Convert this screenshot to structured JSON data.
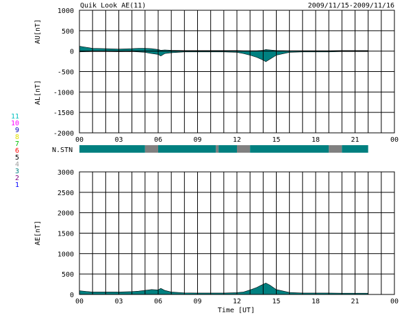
{
  "header": {
    "title": "Quik Look AE(11)",
    "date_range": "2009/11/15-2009/11/16"
  },
  "colors": {
    "data_fill": "#008080",
    "missing_fill": "#808080",
    "grid": "#000000"
  },
  "legend_numbers": [
    {
      "label": "11",
      "color": "#00c0c0"
    },
    {
      "label": "10",
      "color": "#ff00ff"
    },
    {
      "label": "9",
      "color": "#0000c0"
    },
    {
      "label": "8",
      "color": "#e0e000"
    },
    {
      "label": "7",
      "color": "#00c000"
    },
    {
      "label": "6",
      "color": "#ff0000"
    },
    {
      "label": "5",
      "color": "#000000"
    },
    {
      "label": "4",
      "color": "#a0a0a0"
    },
    {
      "label": "3",
      "color": "#008080"
    },
    {
      "label": "2",
      "color": "#800080"
    },
    {
      "label": "1",
      "color": "#0000ff"
    }
  ],
  "chart_data": [
    {
      "type": "area",
      "panel": "AU/AL",
      "ylabel_top": "AU[nT]",
      "ylabel_bottom": "AL[nT]",
      "ylim": [
        -2000,
        1000
      ],
      "yticks": [
        "1000",
        "500",
        "0",
        "-500",
        "-1000",
        "-1500",
        "-2000"
      ],
      "ytick_values": [
        1000,
        500,
        0,
        -500,
        -1000,
        -1500,
        -2000
      ],
      "xlim": [
        0,
        24
      ],
      "xticks": [
        "00",
        "03",
        "06",
        "09",
        "12",
        "15",
        "18",
        "21",
        "00"
      ],
      "x_hours": [
        0,
        1,
        2,
        3,
        4,
        4.5,
        5,
        5.5,
        6,
        6.2,
        6.5,
        7,
        8,
        9,
        10,
        11,
        12,
        12.5,
        13,
        13.5,
        14,
        14.2,
        14.5,
        15,
        16,
        17,
        18,
        19,
        20,
        21,
        22
      ],
      "series": [
        {
          "values": [
            120,
            70,
            60,
            50,
            60,
            70,
            70,
            60,
            40,
            20,
            30,
            20,
            15,
            15,
            15,
            15,
            15,
            10,
            10,
            10,
            20,
            40,
            30,
            15,
            10,
            10,
            10,
            10,
            15,
            15,
            15
          ]
        },
        {
          "values": [
            -20,
            -10,
            -10,
            -15,
            -10,
            -20,
            -30,
            -60,
            -80,
            -120,
            -60,
            -40,
            -20,
            -20,
            -20,
            -20,
            -30,
            -60,
            -100,
            -150,
            -220,
            -260,
            -200,
            -100,
            -30,
            -20,
            -20,
            -20,
            -10,
            -10,
            -10
          ]
        }
      ]
    },
    {
      "type": "bar",
      "panel": "N.STN",
      "label": "N.STN",
      "xlim": [
        0,
        24
      ],
      "segments": [
        {
          "start": 0,
          "end": 5,
          "status": "ok"
        },
        {
          "start": 5,
          "end": 6,
          "status": "missing"
        },
        {
          "start": 6,
          "end": 10.4,
          "status": "ok"
        },
        {
          "start": 10.4,
          "end": 10.6,
          "status": "missing"
        },
        {
          "start": 10.6,
          "end": 12,
          "status": "ok"
        },
        {
          "start": 12,
          "end": 13,
          "status": "missing"
        },
        {
          "start": 13,
          "end": 19,
          "status": "ok"
        },
        {
          "start": 19,
          "end": 20,
          "status": "missing"
        },
        {
          "start": 20,
          "end": 22,
          "status": "ok"
        }
      ]
    },
    {
      "type": "area",
      "panel": "AE",
      "ylabel": "AE[nT]",
      "xlabel": "Time [UT]",
      "ylim": [
        0,
        3000
      ],
      "yticks": [
        "3000",
        "2500",
        "2000",
        "1500",
        "1000",
        "500",
        "0"
      ],
      "ytick_values": [
        3000,
        2500,
        2000,
        1500,
        1000,
        500,
        0
      ],
      "xlim": [
        0,
        24
      ],
      "xticks": [
        "00",
        "03",
        "06",
        "09",
        "12",
        "15",
        "18",
        "21",
        "00"
      ],
      "x_hours": [
        0,
        1,
        2,
        3,
        4,
        4.5,
        5,
        5.5,
        6,
        6.2,
        6.5,
        7,
        8,
        9,
        10,
        11,
        12,
        12.5,
        13,
        13.5,
        14,
        14.2,
        14.5,
        15,
        16,
        17,
        18,
        19,
        20,
        21,
        22
      ],
      "values": [
        90,
        60,
        60,
        60,
        70,
        80,
        100,
        120,
        110,
        150,
        100,
        60,
        40,
        35,
        35,
        35,
        45,
        60,
        110,
        170,
        250,
        280,
        230,
        120,
        50,
        35,
        35,
        35,
        30,
        30,
        30
      ]
    }
  ]
}
